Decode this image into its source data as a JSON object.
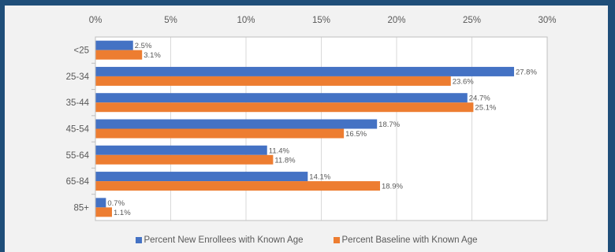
{
  "chart_data": {
    "type": "bar",
    "orientation": "horizontal",
    "categories": [
      "<25",
      "25-34",
      "35-44",
      "45-54",
      "55-64",
      "65-84",
      "85+"
    ],
    "series": [
      {
        "name": "Percent New Enrollees with Known Age",
        "color": "#4472c4",
        "values": [
          2.5,
          27.8,
          24.7,
          18.7,
          11.4,
          14.1,
          0.7
        ],
        "labels": [
          "2.5%",
          "27.8%",
          "24.7%",
          "18.7%",
          "11.4%",
          "14.1%",
          "0.7%"
        ]
      },
      {
        "name": "Percent Baseline with Known Age",
        "color": "#ed7d31",
        "values": [
          3.1,
          23.6,
          25.1,
          16.5,
          11.8,
          18.9,
          1.1
        ],
        "labels": [
          "3.1%",
          "23.6%",
          "25.1%",
          "16.5%",
          "11.8%",
          "18.9%",
          "1.1%"
        ]
      }
    ],
    "x_ticks": [
      "0%",
      "5%",
      "10%",
      "15%",
      "20%",
      "25%",
      "30%"
    ],
    "xlim": [
      0,
      30
    ],
    "x_axis_position": "top",
    "grid": true,
    "legend_position": "bottom"
  }
}
